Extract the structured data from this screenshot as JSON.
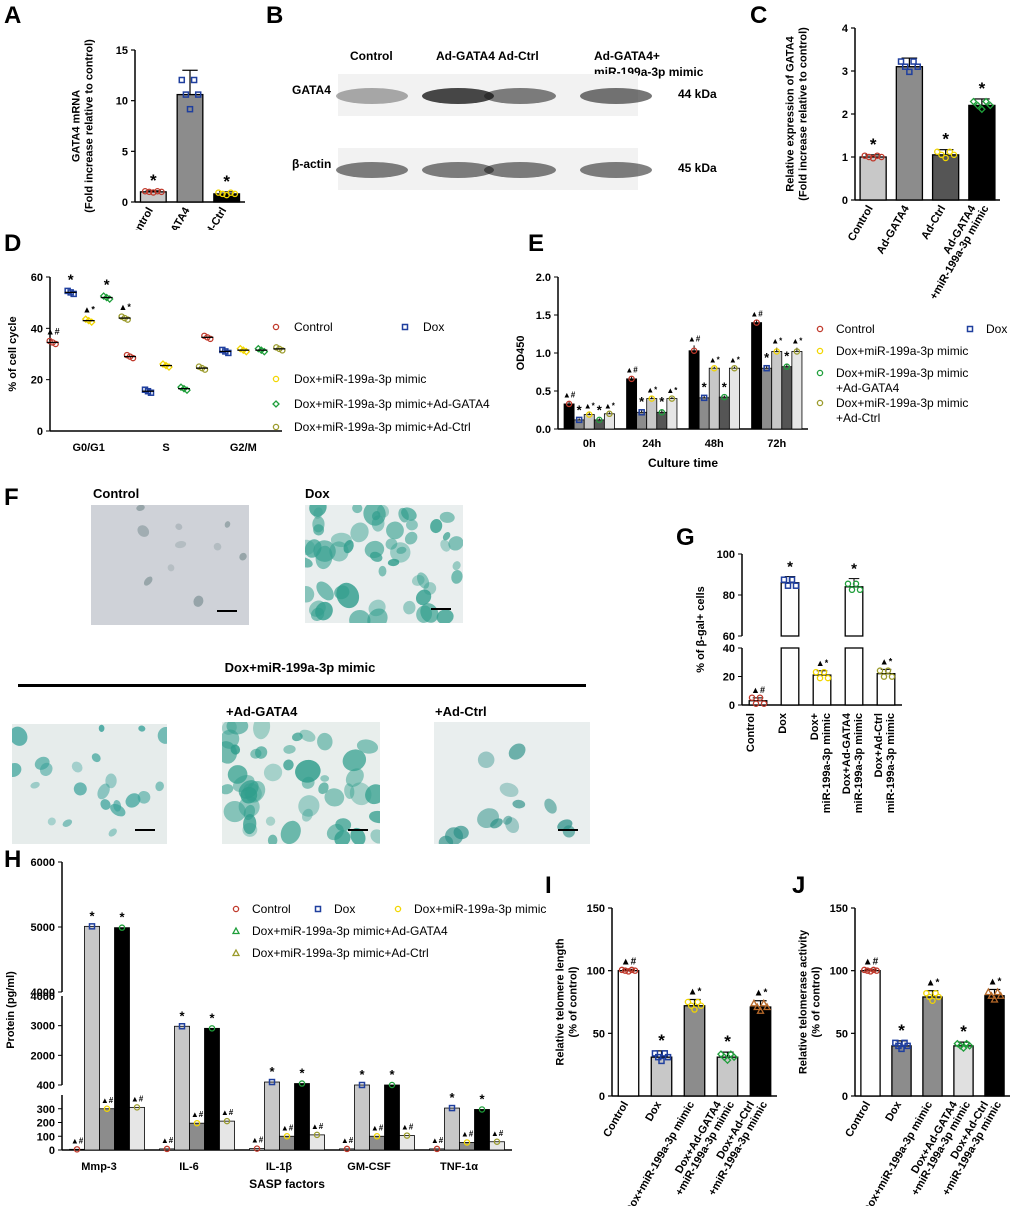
{
  "panel_labels": {
    "A": "A",
    "B": "B",
    "C": "C",
    "D": "D",
    "E": "E",
    "F": "F",
    "G": "G",
    "H": "H",
    "I": "I",
    "J": "J"
  },
  "colors": {
    "red": "#c0392b",
    "blue": "#1f3f9e",
    "yellow": "#f2d600",
    "green": "#1e9e3a",
    "olive": "#9a9a2a",
    "darkgray": "#555555",
    "gray": "#8c8c8c",
    "lightgray": "#c8c8c8",
    "stain": "#2f9d8c"
  },
  "chart_data": [
    {
      "id": "A",
      "type": "bar",
      "ylabel": "GATA4 mRNA\n(Fold increase relative to control)",
      "categories": [
        "Control",
        "Ad-GATA4",
        "Ad-Ctrl"
      ],
      "values": [
        1.0,
        10.6,
        0.8
      ],
      "errors": [
        0.1,
        2.4,
        0.2
      ],
      "ylim": [
        0,
        15
      ],
      "yticks": [
        0,
        5,
        10,
        15
      ],
      "marks": [
        "*",
        "",
        "*"
      ],
      "fills": [
        "#c8c8c8",
        "#8c8c8c",
        "#000000"
      ],
      "marker_colors": [
        "#c0392b",
        "#1f3f9e",
        "#f2d600"
      ]
    },
    {
      "id": "B",
      "type": "blot",
      "lanes": [
        "Control",
        "Ad-GATA4",
        "Ad-Ctrl",
        "Ad-GATA4+\nmiR-199a-3p mimic"
      ],
      "rows": [
        {
          "label": "GATA4",
          "size": "44 kDa"
        },
        {
          "label": "β-actin",
          "size": "45 kDa"
        }
      ]
    },
    {
      "id": "C",
      "type": "bar",
      "ylabel": "Relative expression of GATA4\n(Fold increase relative to control)",
      "categories": [
        "Control",
        "Ad-GATA4",
        "Ad-Ctrl",
        "Ad-GATA4\n+miR-199a-3p mimic"
      ],
      "values": [
        1.0,
        3.1,
        1.05,
        2.2
      ],
      "errors": [
        0.05,
        0.2,
        0.12,
        0.15
      ],
      "ylim": [
        0,
        4
      ],
      "yticks": [
        0,
        1,
        2,
        3,
        4
      ],
      "marks": [
        "*",
        "",
        "*",
        "*"
      ],
      "fills": [
        "#c8c8c8",
        "#8c8c8c",
        "#555555",
        "#000000"
      ],
      "marker_colors": [
        "#c0392b",
        "#1f3f9e",
        "#f2d600",
        "#1e9e3a"
      ]
    },
    {
      "id": "D",
      "type": "scatter",
      "ylabel": "% of cell cycle",
      "categories": [
        "G0/G1",
        "S",
        "G2/M"
      ],
      "ylim": [
        0,
        60
      ],
      "yticks": [
        0,
        20,
        40,
        60
      ],
      "series": [
        {
          "name": "Control",
          "values": [
            34.5,
            29,
            36.5
          ],
          "color": "#c0392b",
          "mark": "▲#"
        },
        {
          "name": "Dox",
          "values": [
            54,
            15.5,
            31
          ],
          "color": "#1f3f9e",
          "mark": "*"
        },
        {
          "name": "Dox+miR-199a-3p mimic",
          "values": [
            43,
            25.5,
            31.5
          ],
          "color": "#f2d600",
          "mark": "▲*"
        },
        {
          "name": "Dox+miR-199a-3p mimic+Ad-GATA4",
          "values": [
            52,
            16.5,
            31.5
          ],
          "color": "#1e9e3a",
          "mark": "*"
        },
        {
          "name": "Dox+miR-199a-3p mimic+Ad-Ctrl",
          "values": [
            44,
            24.5,
            32
          ],
          "color": "#9a9a2a",
          "mark": "▲*"
        }
      ]
    },
    {
      "id": "E",
      "type": "bar",
      "ylabel": "OD450",
      "xlabel": "Culture time",
      "categories": [
        "0h",
        "24h",
        "48h",
        "72h"
      ],
      "ylim": [
        0,
        2.0
      ],
      "yticks": [
        0.0,
        0.5,
        1.0,
        1.5,
        2.0
      ],
      "series": [
        {
          "name": "Control",
          "values": [
            0.33,
            0.66,
            1.03,
            1.4
          ],
          "errors": [
            0.03,
            0.03,
            0.07,
            0.03
          ],
          "mark": "▲#",
          "fill": "#000000",
          "color": "#c0392b"
        },
        {
          "name": "Dox",
          "values": [
            0.12,
            0.22,
            0.41,
            0.8
          ],
          "errors": [
            0.02,
            0.03,
            0.03,
            0.03
          ],
          "mark": "*",
          "fill": "#8c8c8c",
          "color": "#1f3f9e"
        },
        {
          "name": "Dox+miR-199a-3p mimic",
          "values": [
            0.19,
            0.4,
            0.8,
            1.02
          ],
          "errors": [
            0.03,
            0.03,
            0.02,
            0.05
          ],
          "mark": "▲*",
          "fill": "#c8c8c8",
          "color": "#f2d600"
        },
        {
          "name": "Dox+miR-199a-3p mimic\n+Ad-GATA4",
          "values": [
            0.12,
            0.22,
            0.42,
            0.82
          ],
          "errors": [
            0.02,
            0.03,
            0.02,
            0.03
          ],
          "mark": "*",
          "fill": "#555555",
          "color": "#1e9e3a"
        },
        {
          "name": "Dox+miR-199a-3p mimic\n+Ad-Ctrl",
          "values": [
            0.2,
            0.4,
            0.8,
            1.02
          ],
          "errors": [
            0.02,
            0.02,
            0.02,
            0.05
          ],
          "mark": "▲*",
          "fill": "#e6e6e6",
          "color": "#9a9a2a"
        }
      ]
    },
    {
      "id": "G",
      "type": "bar",
      "ylabel": "% of β-gal+ cells",
      "categories": [
        "Control",
        "Dox",
        "Dox+\nmiR-199a-3p mimic",
        "Dox+Ad-GATA4\nmiR-199a-3p mimic",
        "Dox+Ad-Ctrl\nmiR-199a-3p mimic"
      ],
      "values": [
        3,
        86,
        21,
        84,
        22
      ],
      "errors": [
        2,
        3,
        3,
        4,
        3
      ],
      "ylim": [
        0,
        100
      ],
      "axis_break": [
        40,
        60
      ],
      "yticks": [
        0,
        20,
        40,
        60,
        80,
        100
      ],
      "marks": [
        "▲#",
        "*",
        "▲*",
        "*",
        "▲*"
      ],
      "marker_colors": [
        "#c0392b",
        "#1f3f9e",
        "#f2d600",
        "#1e9e3a",
        "#9a9a2a"
      ]
    },
    {
      "id": "H",
      "type": "bar",
      "ylabel": "Protein (pg/ml)",
      "xlabel": "SASP factors",
      "categories": [
        "Mmp-3",
        "IL-6",
        "IL-1β",
        "GM-CSF",
        "TNF-1α"
      ],
      "yticks": [
        0,
        100,
        200,
        300,
        400,
        2000,
        3000,
        4000,
        5000,
        6000
      ],
      "axis_breaks": [
        [
          400,
          1000
        ],
        [
          4000,
          4000
        ]
      ],
      "series": [
        {
          "name": "Control",
          "values": [
            5,
            8,
            10,
            8,
            8
          ],
          "mark": "▲#",
          "fill": "#ffffff",
          "color": "#c0392b"
        },
        {
          "name": "Dox",
          "values": [
            5010,
            2980,
            1100,
            1000,
            305
          ],
          "mark": "*",
          "fill": "#c8c8c8",
          "color": "#1f3f9e"
        },
        {
          "name": "Dox+miR-199a-3p mimic",
          "values": [
            300,
            195,
            100,
            100,
            55
          ],
          "mark": "▲#",
          "fill": "#8c8c8c",
          "color": "#f2d600"
        },
        {
          "name": "Dox+miR-199a-3p mimic+Ad-GATA4",
          "values": [
            4990,
            2910,
            1050,
            950,
            295
          ],
          "mark": "*",
          "fill": "#000000",
          "color": "#1e9e3a"
        },
        {
          "name": "Dox+miR-199a-3p mimic+Ad-Ctrl",
          "values": [
            310,
            210,
            110,
            105,
            60
          ],
          "mark": "▲#",
          "fill": "#e6e6e6",
          "color": "#9a9a2a"
        }
      ]
    },
    {
      "id": "I",
      "type": "bar",
      "ylabel": "Relative telomere length\n(% of control)",
      "categories": [
        "Control",
        "Dox",
        "Dox+miR-199a-3p mimic",
        "Dox+Ad-GATA4\n+miR-199a-3p mimic",
        "Dox+Ad-Ctrl\n+miR-199a-3p mimic"
      ],
      "values": [
        100,
        31,
        72,
        31,
        71
      ],
      "errors": [
        1,
        5,
        5,
        4,
        5
      ],
      "ylim": [
        0,
        150
      ],
      "yticks": [
        0,
        50,
        100,
        150
      ],
      "marks": [
        "▲#",
        "*",
        "▲*",
        "*",
        "▲*"
      ],
      "fills": [
        "#ffffff",
        "#c8c8c8",
        "#8c8c8c",
        "#c8c8c8",
        "#000000"
      ],
      "marker_colors": [
        "#c0392b",
        "#1f3f9e",
        "#f2d600",
        "#1e9e3a",
        "#b86a2a"
      ]
    },
    {
      "id": "J",
      "type": "bar",
      "ylabel": "Relative telomerase activity\n(% of control)",
      "categories": [
        "Control",
        "Dox",
        "Dox+miR-199a-3p mimic",
        "Dox+Ad-GATA4\n+miR-199a-3p mimic",
        "Dox+Ad-Ctrl\n+miR-199a-3p mimic"
      ],
      "values": [
        100,
        40,
        79,
        40,
        80
      ],
      "errors": [
        1,
        4,
        5,
        3,
        5
      ],
      "ylim": [
        0,
        150
      ],
      "yticks": [
        0,
        50,
        100,
        150
      ],
      "marks": [
        "▲#",
        "*",
        "▲*",
        "*",
        "▲*"
      ],
      "fills": [
        "#ffffff",
        "#8c8c8c",
        "#8c8c8c",
        "#e0e0e0",
        "#000000"
      ],
      "marker_colors": [
        "#c0392b",
        "#1f3f9e",
        "#f2d600",
        "#1e9e3a",
        "#b86a2a"
      ]
    }
  ],
  "micrographs": {
    "control": "Control",
    "dox": "Dox",
    "header": "Dox+miR-199a-3p mimic",
    "gata4": "+Ad-GATA4",
    "ctrl": "+Ad-Ctrl"
  }
}
